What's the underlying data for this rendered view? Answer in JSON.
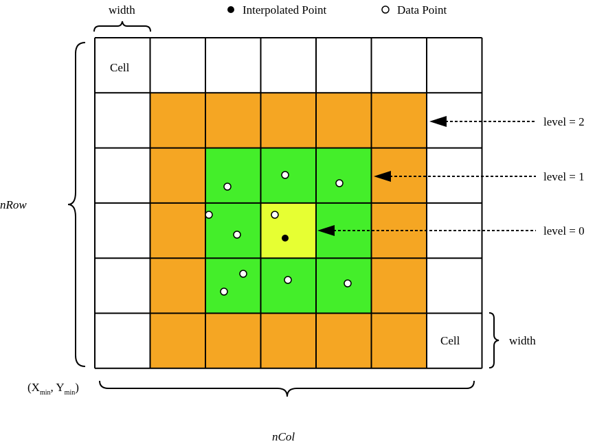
{
  "legend": {
    "interpolated": "Interpolated Point",
    "data_point": "Data Point"
  },
  "labels": {
    "width_top": "width",
    "width_right": "width",
    "cell_top": "Cell",
    "cell_bottom": "Cell",
    "nrow": "nRow",
    "ncol": "nCol",
    "origin_open": "(X",
    "origin_min1": "min",
    "origin_mid": ", Y",
    "origin_min2": "min",
    "origin_close": ")"
  },
  "levels": [
    {
      "text": "level = 2"
    },
    {
      "text": "level = 1"
    },
    {
      "text": "level = 0"
    }
  ],
  "colors": {
    "level2": "#f5a623",
    "level1": "#44ee2a",
    "level0": "#e6ff33",
    "cell": "#ffffff",
    "line": "#000000"
  },
  "grid": {
    "rows": 6,
    "cols": 7,
    "cell_levels": [
      [
        -1,
        -1,
        -1,
        -1,
        -1,
        -1,
        -1
      ],
      [
        -1,
        2,
        2,
        2,
        2,
        2,
        -1
      ],
      [
        -1,
        2,
        1,
        1,
        1,
        2,
        -1
      ],
      [
        -1,
        2,
        1,
        0,
        1,
        2,
        -1
      ],
      [
        -1,
        2,
        1,
        1,
        1,
        2,
        -1
      ],
      [
        -1,
        2,
        2,
        2,
        2,
        2,
        -1
      ]
    ]
  }
}
